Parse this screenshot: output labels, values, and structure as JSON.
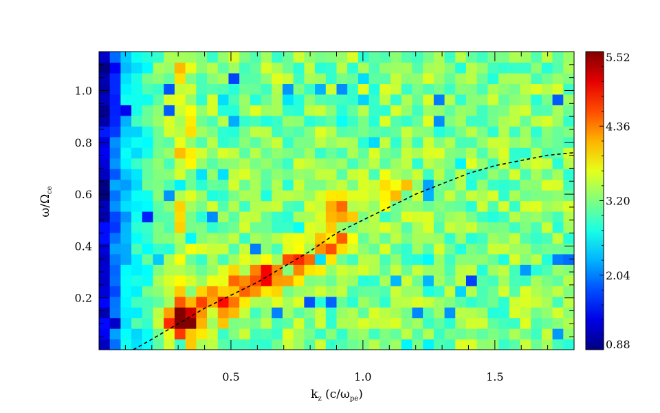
{
  "chart_data": {
    "type": "heatmap",
    "xlabel": "k",
    "xlabel_sub": "z",
    "xlabel_rest": "(c/ω",
    "xlabel_rest_sub": "pe",
    "xlabel_close": ")",
    "ylabel": "ω/Ω",
    "ylabel_sub": "ce",
    "xlim": [
      0.0,
      1.8
    ],
    "ylim": [
      0.0,
      1.15
    ],
    "x_ticks": [
      0.5,
      1.0,
      1.5
    ],
    "x_tick_labels": [
      "0.5",
      "1.0",
      "1.5"
    ],
    "y_ticks": [
      0.2,
      0.4,
      0.6,
      0.8,
      1.0
    ],
    "y_tick_labels": [
      "0.2",
      "0.4",
      "0.6",
      "0.8",
      "1.0"
    ],
    "grid_nx": 44,
    "grid_ny": 28,
    "colorbar": {
      "range": [
        0.88,
        5.52
      ],
      "ticks": [
        0.88,
        2.04,
        3.2,
        4.36,
        5.52
      ],
      "tick_labels": [
        "0.88",
        "2.04",
        "3.20",
        "4.36",
        "5.52"
      ],
      "colormap": "jet"
    },
    "background_level": 3.2,
    "features": {
      "low_k_band_levels": [
        1.3,
        2.0,
        2.4,
        2.7,
        2.9,
        3.1
      ],
      "vertical_stripe": {
        "k": 0.32,
        "level": 3.9
      },
      "ridge_points": [
        {
          "k": 0.32,
          "w": 0.12,
          "level": 5.4
        },
        {
          "k": 0.45,
          "w": 0.17,
          "level": 5.1
        },
        {
          "k": 0.55,
          "w": 0.24,
          "level": 4.9
        },
        {
          "k": 0.65,
          "w": 0.29,
          "level": 4.8
        },
        {
          "k": 0.75,
          "w": 0.32,
          "level": 4.6
        },
        {
          "k": 0.88,
          "w": 0.42,
          "level": 4.5
        },
        {
          "k": 0.92,
          "w": 0.55,
          "level": 4.2
        },
        {
          "k": 1.12,
          "w": 0.62,
          "level": 3.9
        }
      ]
    },
    "series": [
      {
        "style": "dashed",
        "color": "#000000",
        "x": [
          0.13,
          0.2,
          0.3,
          0.4,
          0.5,
          0.6,
          0.7,
          0.8,
          0.9,
          1.0,
          1.1,
          1.2,
          1.3,
          1.4,
          1.5,
          1.6,
          1.7,
          1.8
        ],
        "y": [
          0.0,
          0.04,
          0.1,
          0.16,
          0.21,
          0.26,
          0.32,
          0.38,
          0.45,
          0.5,
          0.55,
          0.6,
          0.64,
          0.68,
          0.71,
          0.73,
          0.75,
          0.76
        ]
      }
    ]
  }
}
